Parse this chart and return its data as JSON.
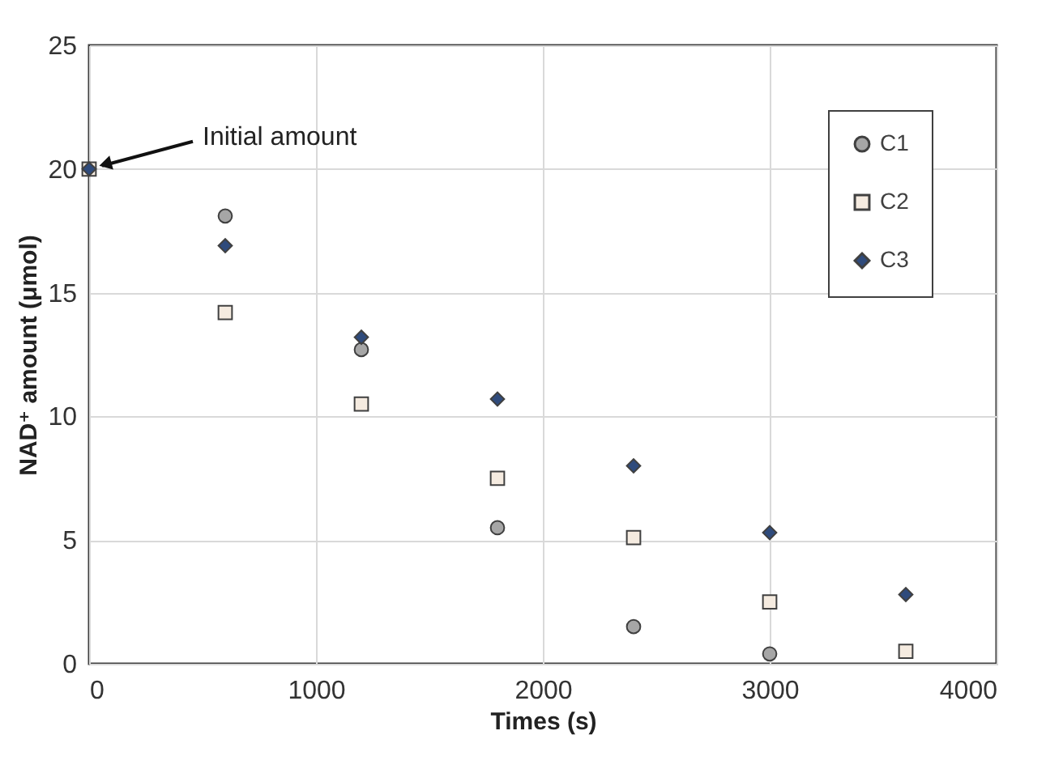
{
  "chart_data": {
    "type": "scatter",
    "xlabel": "Times (s)",
    "ylabel": "NAD⁺ amount (μmol)",
    "x": [
      0,
      600,
      1200,
      1800,
      2400,
      3000,
      3600
    ],
    "series": [
      {
        "name": "C1",
        "color": "#a6a6a6",
        "marker": "circle",
        "values": [
          null,
          18.1,
          12.7,
          5.5,
          1.5,
          0.4,
          null
        ]
      },
      {
        "name": "C2",
        "color": "#f5ebe0",
        "marker": "square",
        "values": [
          20,
          14.2,
          10.5,
          7.5,
          5.1,
          2.5,
          0.5
        ]
      },
      {
        "name": "C3",
        "color": "#2f4b7c",
        "marker": "diamond",
        "values": [
          20,
          16.9,
          13.2,
          10.7,
          8.0,
          5.3,
          2.8
        ]
      }
    ],
    "xlim": [
      0,
      4000
    ],
    "xticks": [
      0,
      1000,
      2000,
      3000,
      4000
    ],
    "ylim": [
      0,
      25
    ],
    "yticks": [
      0,
      5,
      10,
      15,
      20,
      25
    ],
    "grid": true,
    "legend": "top right",
    "annotations": [
      {
        "text": "Initial amount",
        "x": 0,
        "y": 20
      }
    ]
  }
}
